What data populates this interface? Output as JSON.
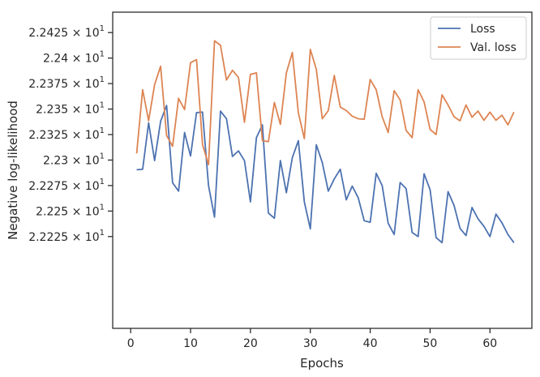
{
  "chart_data": {
    "type": "line",
    "xlabel": "Epochs",
    "ylabel": "Negative log-likelihood",
    "xlim": [
      -3,
      67
    ],
    "ylim": [
      22.2135,
      22.2445
    ],
    "xticks": [
      0,
      10,
      20,
      30,
      40,
      50,
      60
    ],
    "yticks": [
      {
        "value": 22.2225,
        "mantissa": "2.2225",
        "exponent": "1"
      },
      {
        "value": 22.225,
        "mantissa": "2.225",
        "exponent": "1"
      },
      {
        "value": 22.2275,
        "mantissa": "2.2275",
        "exponent": "1"
      },
      {
        "value": 22.23,
        "mantissa": "2.23",
        "exponent": "1"
      },
      {
        "value": 22.2325,
        "mantissa": "2.2325",
        "exponent": "1"
      },
      {
        "value": 22.235,
        "mantissa": "2.235",
        "exponent": "1"
      },
      {
        "value": 22.2375,
        "mantissa": "2.2375",
        "exponent": "1"
      },
      {
        "value": 22.24,
        "mantissa": "2.24",
        "exponent": "1"
      },
      {
        "value": 22.2425,
        "mantissa": "2.2425",
        "exponent": "1"
      }
    ],
    "grid": false,
    "legend_position": "top-right",
    "x": [
      1,
      2,
      3,
      4,
      5,
      6,
      7,
      8,
      9,
      10,
      11,
      12,
      13,
      14,
      15,
      16,
      17,
      18,
      19,
      20,
      21,
      22,
      23,
      24,
      25,
      26,
      27,
      28,
      29,
      30,
      31,
      32,
      33,
      34,
      35,
      36,
      37,
      38,
      39,
      40,
      41,
      42,
      43,
      44,
      45,
      46,
      47,
      48,
      49,
      50,
      51,
      52,
      53,
      54,
      55,
      56,
      57,
      58,
      59,
      60,
      61,
      62,
      63,
      64
    ],
    "series": [
      {
        "name": "Loss",
        "color": "#4c72b0",
        "values": [
          22.22905,
          22.2291,
          22.23365,
          22.22995,
          22.2338,
          22.23535,
          22.22778,
          22.22695,
          22.2327,
          22.2304,
          22.23465,
          22.2347,
          22.2275,
          22.2244,
          22.2348,
          22.23405,
          22.23035,
          22.2309,
          22.22995,
          22.2259,
          22.2322,
          22.23345,
          22.2248,
          22.2243,
          22.22995,
          22.2268,
          22.23025,
          22.2319,
          22.2259,
          22.22325,
          22.2315,
          22.22975,
          22.22695,
          22.22815,
          22.2291,
          22.2261,
          22.22745,
          22.2263,
          22.22405,
          22.2239,
          22.2287,
          22.2275,
          22.2238,
          22.2227,
          22.2278,
          22.2272,
          22.2229,
          22.2225,
          22.22865,
          22.2271,
          22.2224,
          22.2219,
          22.2269,
          22.22555,
          22.2233,
          22.2226,
          22.22535,
          22.22425,
          22.2235,
          22.2225,
          22.2247,
          22.22385,
          22.2227,
          22.2219
        ]
      },
      {
        "name": "Val. loss",
        "color": "#dd8452",
        "values": [
          22.23065,
          22.2369,
          22.23385,
          22.2374,
          22.2392,
          22.2324,
          22.23135,
          22.23605,
          22.23495,
          22.23955,
          22.23985,
          22.2315,
          22.22955,
          22.2417,
          22.24125,
          22.23785,
          22.2388,
          22.2381,
          22.2337,
          22.2384,
          22.23855,
          22.2319,
          22.2318,
          22.23565,
          22.2335,
          22.23855,
          22.24055,
          22.23465,
          22.2321,
          22.24085,
          22.2389,
          22.23405,
          22.23485,
          22.2383,
          22.2352,
          22.23485,
          22.2343,
          22.23405,
          22.234,
          22.2379,
          22.2369,
          22.23425,
          22.2327,
          22.2368,
          22.2359,
          22.2329,
          22.2322,
          22.2369,
          22.2357,
          22.233,
          22.2325,
          22.2364,
          22.2354,
          22.23425,
          22.23385,
          22.2354,
          22.2342,
          22.2348,
          22.2339,
          22.2347,
          22.2339,
          22.2344,
          22.23345,
          22.2347
        ]
      }
    ]
  }
}
